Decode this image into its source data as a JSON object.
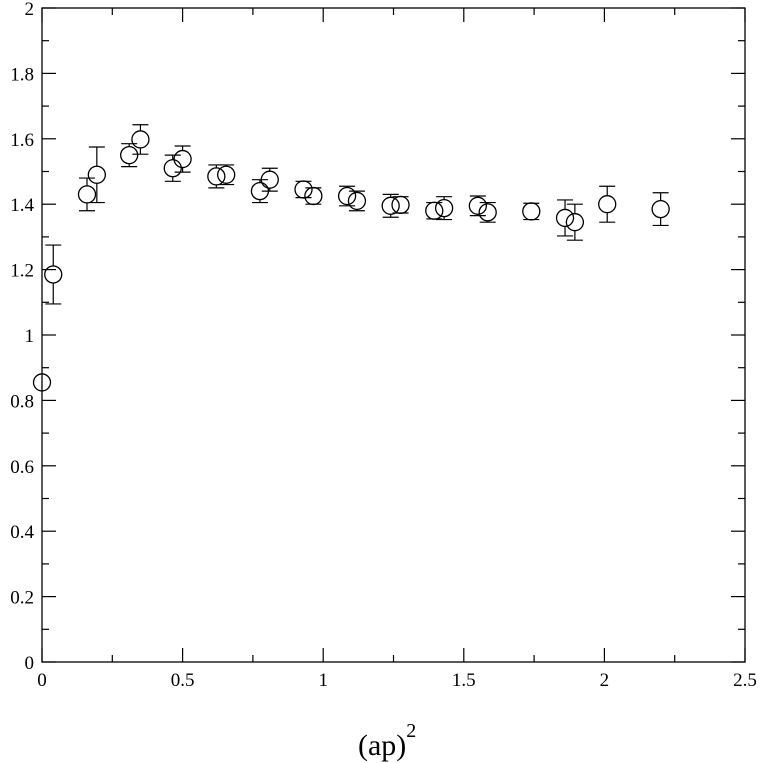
{
  "chart_data": {
    "type": "scatter",
    "title": "",
    "xlabel": "(ap)",
    "xlabel_superscript": "2",
    "ylabel": "",
    "xlim": [
      0,
      2.5
    ],
    "ylim": [
      0,
      2
    ],
    "grid": false,
    "marker": "open-circle",
    "x_ticks": [
      "0",
      "0.5",
      "1",
      "1.5",
      "2",
      "2.5"
    ],
    "y_ticks": [
      "0",
      "0.2",
      "0.4",
      "0.6",
      "0.8",
      "1",
      "1.2",
      "1.4",
      "1.6",
      "1.8",
      "2"
    ],
    "points": [
      {
        "x": 0.0,
        "y": 0.855,
        "err": 0.0
      },
      {
        "x": 0.04,
        "y": 1.185,
        "err": 0.09
      },
      {
        "x": 0.16,
        "y": 1.43,
        "err": 0.05
      },
      {
        "x": 0.195,
        "y": 1.49,
        "err": 0.085
      },
      {
        "x": 0.31,
        "y": 1.55,
        "err": 0.035
      },
      {
        "x": 0.35,
        "y": 1.598,
        "err": 0.045
      },
      {
        "x": 0.465,
        "y": 1.51,
        "err": 0.04
      },
      {
        "x": 0.5,
        "y": 1.538,
        "err": 0.04
      },
      {
        "x": 0.62,
        "y": 1.485,
        "err": 0.035
      },
      {
        "x": 0.655,
        "y": 1.49,
        "err": 0.03
      },
      {
        "x": 0.775,
        "y": 1.44,
        "err": 0.035
      },
      {
        "x": 0.81,
        "y": 1.475,
        "err": 0.035
      },
      {
        "x": 0.93,
        "y": 1.445,
        "err": 0.025
      },
      {
        "x": 0.965,
        "y": 1.425,
        "err": 0.025
      },
      {
        "x": 1.085,
        "y": 1.425,
        "err": 0.03
      },
      {
        "x": 1.12,
        "y": 1.41,
        "err": 0.03
      },
      {
        "x": 1.24,
        "y": 1.395,
        "err": 0.035
      },
      {
        "x": 1.275,
        "y": 1.398,
        "err": 0.025
      },
      {
        "x": 1.395,
        "y": 1.38,
        "err": 0.025
      },
      {
        "x": 1.43,
        "y": 1.388,
        "err": 0.035
      },
      {
        "x": 1.55,
        "y": 1.395,
        "err": 0.03
      },
      {
        "x": 1.585,
        "y": 1.375,
        "err": 0.03
      },
      {
        "x": 1.74,
        "y": 1.378,
        "err": 0.025
      },
      {
        "x": 1.86,
        "y": 1.358,
        "err": 0.055
      },
      {
        "x": 1.895,
        "y": 1.345,
        "err": 0.055
      },
      {
        "x": 2.01,
        "y": 1.4,
        "err": 0.055
      },
      {
        "x": 2.2,
        "y": 1.385,
        "err": 0.05
      }
    ]
  }
}
